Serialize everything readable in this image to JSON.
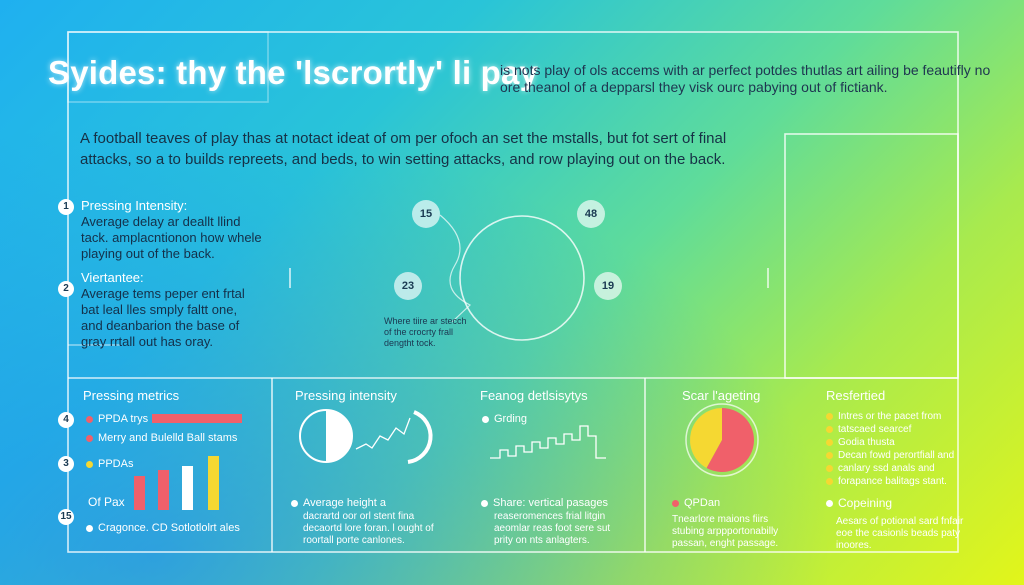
{
  "header": {
    "title": "Syides:  thy the 'lscrortly' li pay",
    "subtitle": "is nots play of ols accems with ar perfect potdes thutlas art ailing be feautifly no ore theanol of a depparsl they visk ourc pabying out of fictiank."
  },
  "intro": {
    "text": "A football teaves of play thas at notact ideat of om per ofoch an set the mstalls, but fot sert of final attacks, so a to builds repreets, and beds, to win setting attacks, and row playing out on the back."
  },
  "notes": [
    {
      "badge": "1",
      "heading": "Pressing Intensity:",
      "text": "Average delay ar deallt llind tack. amplacntionon how whele playing out of the back."
    },
    {
      "badge": "2",
      "heading": "Viertantee:",
      "text": "Average tems peper ent frtal bat leal lles smply faltt one, and deanbarion the base of gray rrtall out has oray."
    }
  ],
  "pitch": {
    "markers": [
      "15",
      "48",
      "23",
      "19"
    ],
    "annotation": "Where tiire ar stecch of the crocrty frall dengtht tock."
  },
  "panels": {
    "pressing_metrics": {
      "title": "Pressing metrics",
      "badges": [
        "4",
        "3",
        "15"
      ],
      "items": [
        "PPDA trys",
        "Merry and Bulelld Ball stams",
        "PPDAs"
      ],
      "of_pax": "Of Pax",
      "footer": "Cragonce. CD Sotlotlolrt ales",
      "colors": {
        "red": "#f0606a",
        "yellow": "#f5d832",
        "white": "#ffffff"
      },
      "bar_values": [
        2.2,
        2.7,
        3.2,
        3.9,
        4.1
      ]
    },
    "pressing_intensity": {
      "title": "Pressing intensity",
      "bullet": "Average height a",
      "text": "dacrartd oor orl stent fina decaortd lore foran. l ought of roortall porte canlones."
    },
    "feanog": {
      "title": "Feanog detlsisytys",
      "sub": "Grding",
      "bullet": "Share: vertical pasages",
      "text": "reaseromences frial litgin aeomlar reas foot sere sut prity on nts anlagters."
    },
    "scar": {
      "title": "Scar l'ageting",
      "bullet": "QPDan",
      "text": "Tnearlore maions fiirs stubing arppportonabilly passan, enght passage.",
      "pie": [
        {
          "label": "red",
          "value": 58,
          "color": "#f0606a"
        },
        {
          "label": "yellow",
          "value": 42,
          "color": "#f5d832"
        }
      ]
    },
    "resfertied": {
      "title": "Resfertied",
      "items": [
        "Intres or the pacet from",
        "tatscaed searcef",
        "Godia thusta",
        "Decan fowd perortfiall and",
        "canlary ssd anals and",
        "forapance balitags stant."
      ],
      "bullet": "Copeining",
      "text": "Aesars of potional sard fnfair eoe the casionls beads paty inoores."
    }
  }
}
